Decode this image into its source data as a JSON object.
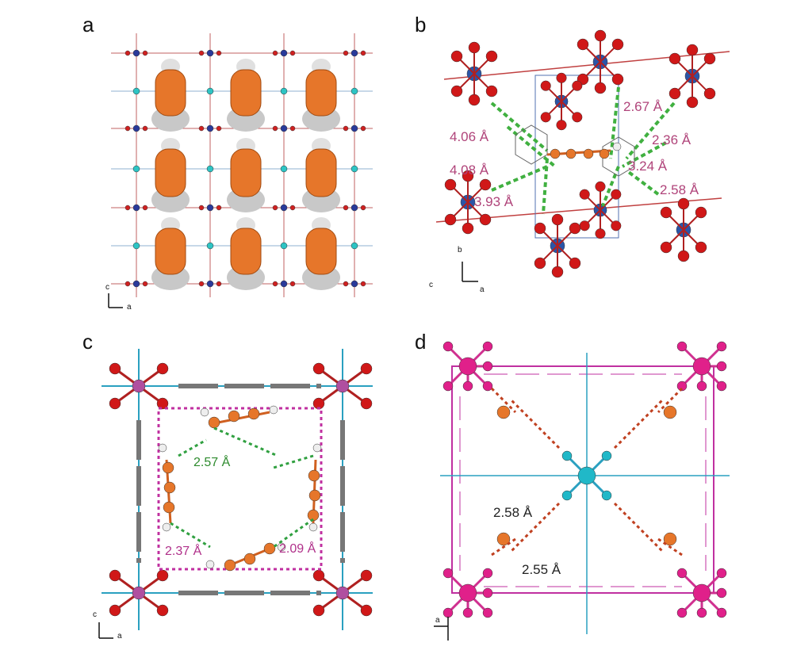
{
  "panels": [
    {
      "label": "a",
      "axes": [
        "c",
        "a"
      ]
    },
    {
      "label": "b",
      "distances": [
        "4.06 Å",
        "4.08 Å",
        "3.93 Å",
        "2.67 Å",
        "2.36 Å",
        "3.24 Å",
        "2.58 Å"
      ],
      "axes": [
        "b",
        "c",
        "a"
      ]
    },
    {
      "label": "c",
      "distances": [
        "2.57 Å",
        "2.37 Å",
        "2.09 Å"
      ],
      "axes": [
        "c",
        "a"
      ]
    },
    {
      "label": "d",
      "distances": [
        "2.58 Å",
        "2.55 Å"
      ],
      "axes": [
        "a"
      ]
    }
  ]
}
